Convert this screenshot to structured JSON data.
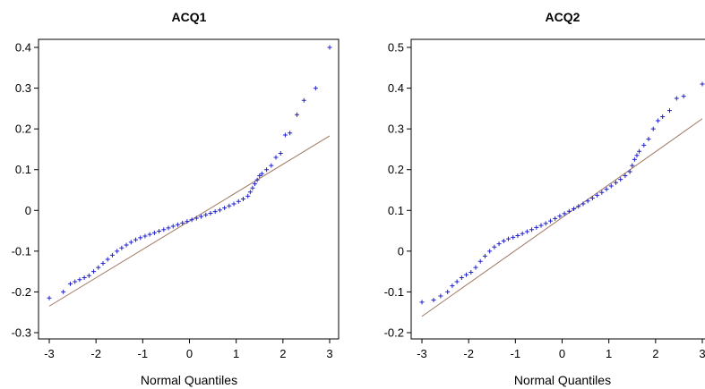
{
  "colors": {
    "points": "#2222cc",
    "refline": "#a07860",
    "axes": "#000000"
  },
  "chart_data": [
    {
      "type": "scatter",
      "title": "ACQ1",
      "xlabel": "Normal Quantiles",
      "ylabel": "",
      "xlim": [
        -3,
        3
      ],
      "ylim": [
        -0.3,
        0.4
      ],
      "xticks": [
        -3,
        -2,
        -1,
        0,
        1,
        2,
        3
      ],
      "xtick_labels": [
        "-3",
        "-2",
        "-1",
        "0",
        "1",
        "2",
        "3"
      ],
      "yticks": [
        -0.3,
        -0.2,
        -0.1,
        0,
        0.1,
        0.2,
        0.3,
        0.4
      ],
      "ytick_labels": [
        "-0.3",
        "-0.2",
        "-0.1",
        "0",
        "0.1",
        "0.2",
        "0.3",
        "0.4"
      ],
      "reference_line": {
        "x": [
          -3,
          3
        ],
        "y": [
          -0.235,
          0.183
        ]
      },
      "marker": "+",
      "series": [
        {
          "x": [
            -3.0,
            -2.7,
            -2.55,
            -2.45,
            -2.35,
            -2.25,
            -2.15,
            -2.05,
            -1.95,
            -1.85,
            -1.75,
            -1.65,
            -1.55,
            -1.45,
            -1.35,
            -1.25,
            -1.15,
            -1.05,
            -0.95,
            -0.85,
            -0.75,
            -0.65,
            -0.55,
            -0.45,
            -0.35,
            -0.25,
            -0.15,
            -0.05,
            0.05,
            0.15,
            0.25,
            0.35,
            0.45,
            0.55,
            0.65,
            0.75,
            0.85,
            0.95,
            1.05,
            1.15,
            1.25,
            1.3,
            1.35,
            1.4,
            1.45,
            1.5,
            1.55,
            1.65,
            1.75,
            1.85,
            1.95,
            2.05,
            2.15,
            2.3,
            2.45,
            2.7,
            3.0
          ],
          "y": [
            -0.215,
            -0.2,
            -0.18,
            -0.175,
            -0.17,
            -0.165,
            -0.16,
            -0.15,
            -0.14,
            -0.13,
            -0.12,
            -0.11,
            -0.1,
            -0.092,
            -0.085,
            -0.078,
            -0.072,
            -0.067,
            -0.063,
            -0.059,
            -0.055,
            -0.051,
            -0.047,
            -0.043,
            -0.039,
            -0.035,
            -0.031,
            -0.027,
            -0.023,
            -0.019,
            -0.015,
            -0.011,
            -0.007,
            -0.003,
            0.001,
            0.006,
            0.011,
            0.016,
            0.022,
            0.028,
            0.035,
            0.045,
            0.055,
            0.065,
            0.075,
            0.085,
            0.09,
            0.1,
            0.11,
            0.13,
            0.14,
            0.185,
            0.19,
            0.235,
            0.27,
            0.3,
            0.4
          ]
        }
      ]
    },
    {
      "type": "scatter",
      "title": "ACQ2",
      "xlabel": "Normal Quantiles",
      "ylabel": "",
      "xlim": [
        -3,
        3
      ],
      "ylim": [
        -0.2,
        0.5
      ],
      "xticks": [
        -3,
        -2,
        -1,
        0,
        1,
        2,
        3
      ],
      "xtick_labels": [
        "-3",
        "-2",
        "-1",
        "0",
        "1",
        "2",
        "3"
      ],
      "yticks": [
        -0.2,
        -0.1,
        0,
        0.1,
        0.2,
        0.3,
        0.4,
        0.5
      ],
      "ytick_labels": [
        "-0.2",
        "-0.1",
        "0",
        "0.1",
        "0.2",
        "0.3",
        "0.4",
        "0.5"
      ],
      "reference_line": {
        "x": [
          -3,
          3
        ],
        "y": [
          -0.16,
          0.325
        ]
      },
      "marker": "+",
      "series": [
        {
          "x": [
            -3.0,
            -2.75,
            -2.6,
            -2.45,
            -2.35,
            -2.25,
            -2.15,
            -2.05,
            -1.95,
            -1.85,
            -1.75,
            -1.65,
            -1.55,
            -1.45,
            -1.35,
            -1.25,
            -1.15,
            -1.05,
            -0.95,
            -0.85,
            -0.75,
            -0.65,
            -0.55,
            -0.45,
            -0.35,
            -0.25,
            -0.15,
            -0.05,
            0.05,
            0.15,
            0.25,
            0.35,
            0.45,
            0.55,
            0.65,
            0.75,
            0.85,
            0.95,
            1.05,
            1.15,
            1.25,
            1.35,
            1.45,
            1.5,
            1.55,
            1.6,
            1.65,
            1.75,
            1.85,
            1.95,
            2.05,
            2.15,
            2.3,
            2.45,
            2.6,
            3.0
          ],
          "y": [
            -0.125,
            -0.12,
            -0.11,
            -0.1,
            -0.085,
            -0.075,
            -0.065,
            -0.058,
            -0.052,
            -0.04,
            -0.025,
            -0.012,
            0.0,
            0.01,
            0.018,
            0.025,
            0.03,
            0.034,
            0.038,
            0.043,
            0.048,
            0.053,
            0.058,
            0.063,
            0.068,
            0.074,
            0.08,
            0.086,
            0.092,
            0.098,
            0.104,
            0.11,
            0.116,
            0.123,
            0.13,
            0.137,
            0.144,
            0.152,
            0.16,
            0.168,
            0.176,
            0.185,
            0.195,
            0.21,
            0.225,
            0.235,
            0.245,
            0.26,
            0.275,
            0.3,
            0.32,
            0.33,
            0.345,
            0.375,
            0.38,
            0.41
          ]
        }
      ]
    }
  ]
}
